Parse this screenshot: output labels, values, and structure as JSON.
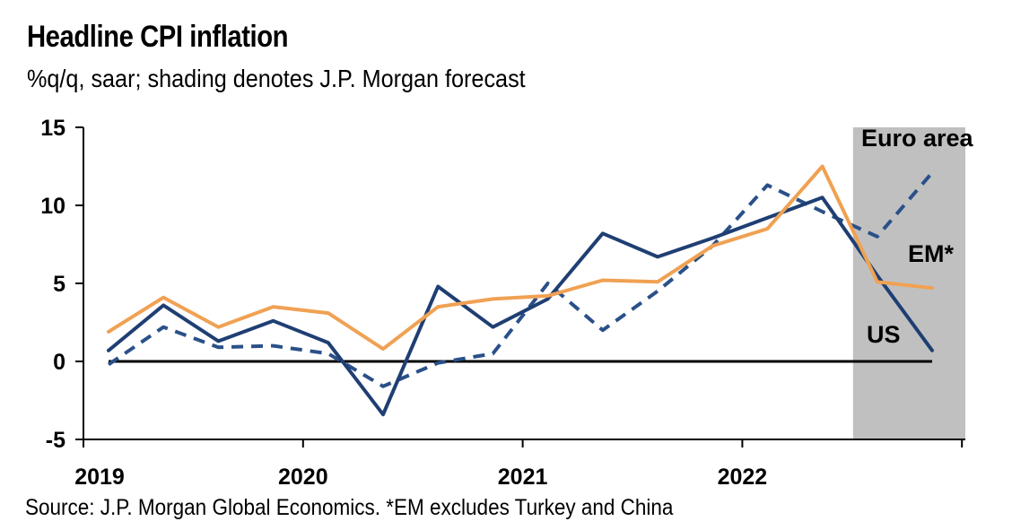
{
  "header": {
    "title": "Headline CPI inflation",
    "subtitle": "%q/q, saar; shading denotes J.P. Morgan forecast"
  },
  "footer": {
    "source": "Source: J.P. Morgan Global Economics. *EM excludes Turkey and China"
  },
  "colors": {
    "us": "#1f3f73",
    "euro_area": "#2a5089",
    "em": "#f0a153",
    "forecast_shading": "#c0c0c0",
    "zero_line": "#000000"
  },
  "chart_data": {
    "type": "line",
    "title": "Headline CPI inflation",
    "subtitle": "%q/q, saar; shading denotes J.P. Morgan forecast",
    "xlabel": "",
    "ylabel": "",
    "ylim": [
      -5,
      15
    ],
    "y_ticks": [
      "15",
      "10",
      "5",
      "0",
      "-5"
    ],
    "y_tick_values": [
      15,
      10,
      5,
      0,
      -5
    ],
    "x_tick_labels": [
      "2019",
      "2020",
      "2021",
      "2022"
    ],
    "x": [
      "2019Q1",
      "2019Q2",
      "2019Q3",
      "2019Q4",
      "2020Q1",
      "2020Q2",
      "2020Q3",
      "2020Q4",
      "2021Q1",
      "2021Q2",
      "2021Q3",
      "2021Q4",
      "2022Q1",
      "2022Q2",
      "2022Q3",
      "2022Q4"
    ],
    "forecast_start_index": 14,
    "series": [
      {
        "name": "US",
        "style": "solid",
        "values": [
          0.7,
          3.6,
          1.3,
          2.6,
          1.2,
          -3.4,
          4.8,
          2.2,
          4.0,
          8.2,
          6.7,
          7.9,
          9.2,
          10.5,
          5.5,
          0.7
        ]
      },
      {
        "name": "Euro area",
        "style": "dashed",
        "values": [
          -0.2,
          2.2,
          0.9,
          1.0,
          0.5,
          -1.6,
          -0.1,
          0.5,
          5.0,
          2.0,
          4.5,
          7.4,
          11.3,
          9.6,
          8.0,
          12.1
        ]
      },
      {
        "name": "EM*",
        "style": "solid",
        "values": [
          1.9,
          4.1,
          2.2,
          3.5,
          3.1,
          0.8,
          3.5,
          4.0,
          4.2,
          5.2,
          5.1,
          7.4,
          8.5,
          12.5,
          5.1,
          4.7
        ]
      }
    ],
    "labels": {
      "us": "US",
      "euro_area": "Euro area",
      "em": "EM*"
    },
    "grid": false,
    "legend": "inline labels"
  }
}
